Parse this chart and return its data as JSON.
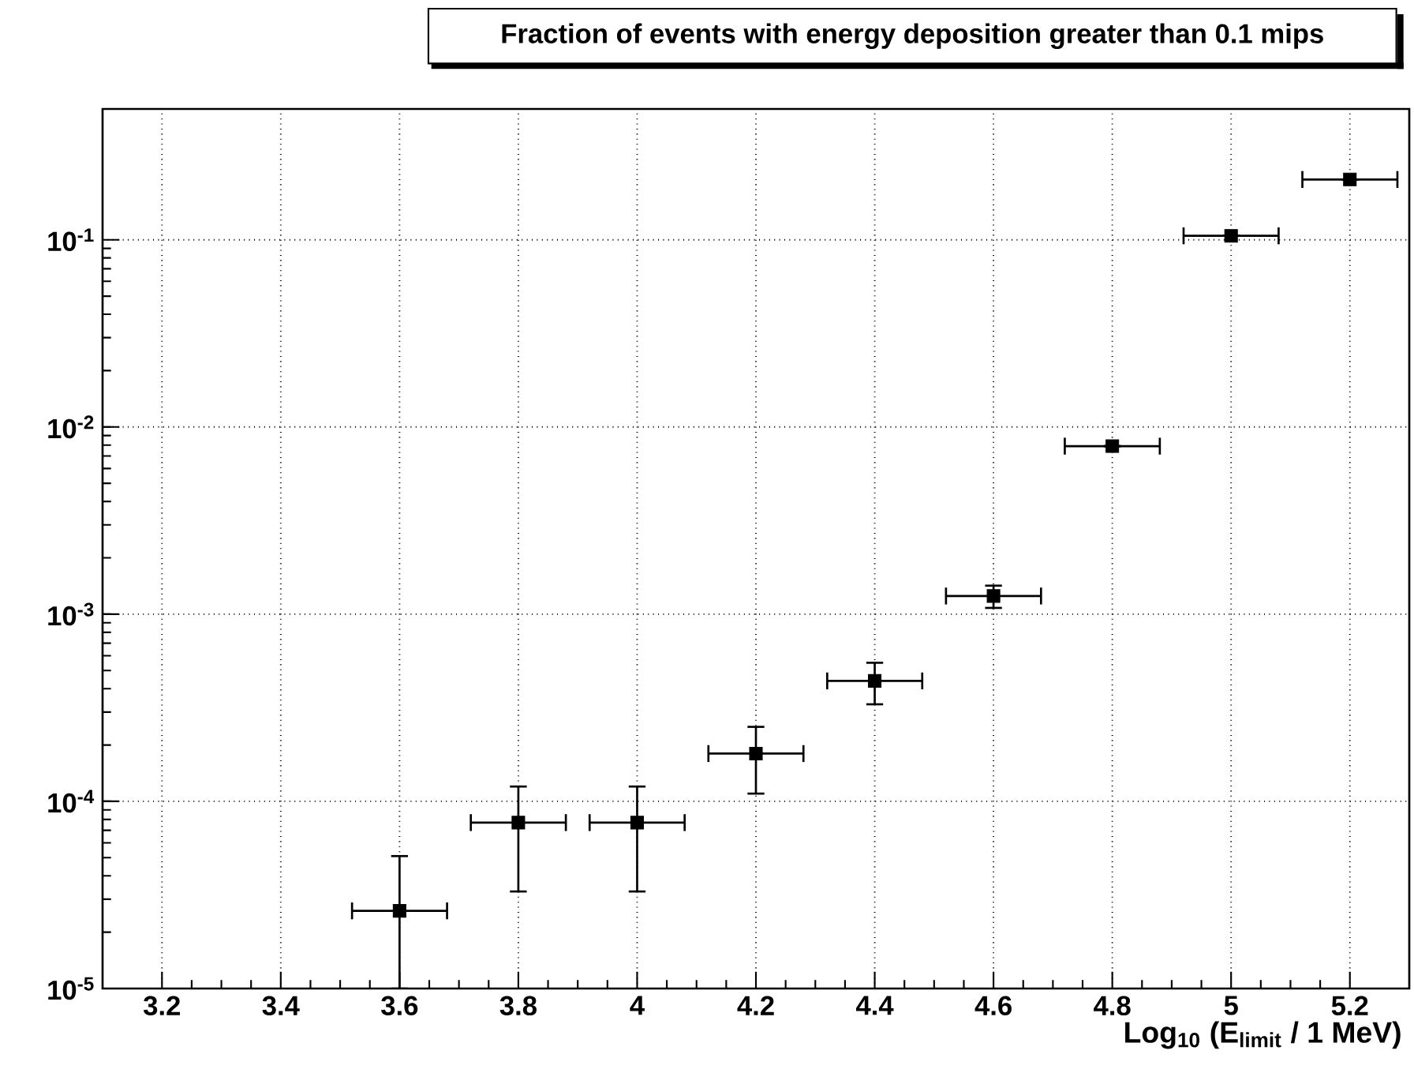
{
  "chart_data": {
    "type": "scatter",
    "title": "Fraction of events with energy deposition greater than 0.1 mips",
    "xlabel": "Log$_{10}$ (E$_{limit}$ / 1 MeV)",
    "x": [
      3.6,
      3.8,
      4.0,
      4.2,
      4.4,
      4.6,
      4.8,
      5.0,
      5.2
    ],
    "series": [
      {
        "color": "#000000",
        "values": [
          2.6e-05,
          7.7e-05,
          7.7e-05,
          0.00018,
          0.00044,
          0.00125,
          0.0079,
          0.105,
          0.21
        ],
        "errors": [
          [
            1e-05,
            5.1e-05
          ],
          [
            3.3e-05,
            0.00012
          ],
          [
            3.3e-05,
            0.00012
          ],
          [
            0.00011,
            0.00025
          ],
          [
            0.00033,
            0.00055
          ],
          [
            0.00108,
            0.00142
          ],
          null,
          null,
          null
        ],
        "xerrors": [
          0.08,
          0.08,
          0.08,
          0.08,
          0.08,
          0.08,
          0.08,
          0.08,
          0.08
        ]
      }
    ],
    "xlim": [
      3.1,
      5.3
    ],
    "ylim": [
      1e-05,
      0.5
    ],
    "xticks": [
      3.2,
      3.4,
      3.6,
      3.8,
      4,
      4.2,
      4.4,
      4.6,
      4.8,
      5,
      5.2
    ],
    "yticks": [
      {
        "value": 1e-05,
        "label": "10$^{-5}$"
      },
      {
        "value": 0.0001,
        "label": "10$^{-4}$"
      },
      {
        "value": 0.001,
        "label": "10$^{-3}$"
      },
      {
        "value": 0.01,
        "label": "10$^{-2}$"
      },
      {
        "value": 0.1,
        "label": "10$^{-1}$"
      }
    ],
    "log": true,
    "grid": true,
    "marker": "square"
  }
}
